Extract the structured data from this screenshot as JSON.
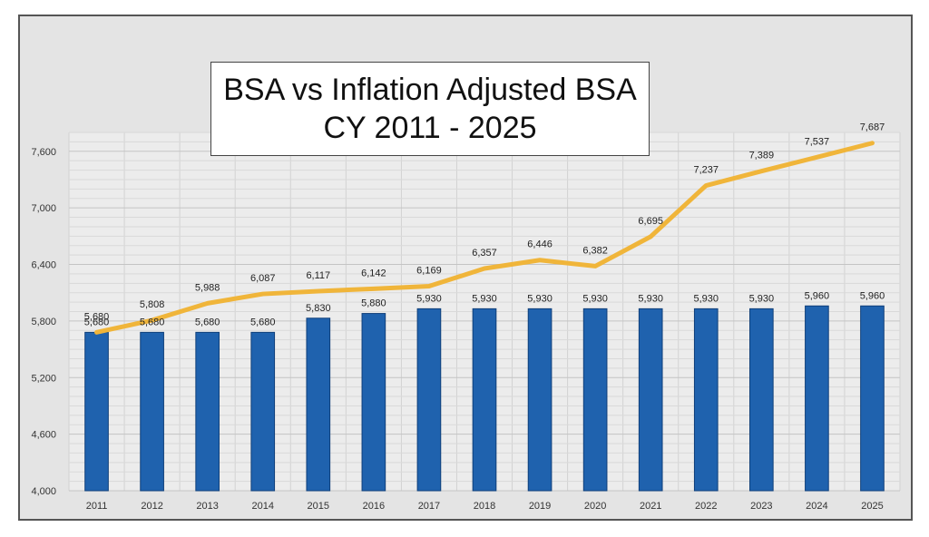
{
  "chart_data": {
    "type": "bar+line",
    "title": "BSA vs Inflation Adjusted BSA",
    "subtitle": "CY 2011 - 2025",
    "categories": [
      "2011",
      "2012",
      "2013",
      "2014",
      "2015",
      "2016",
      "2017",
      "2018",
      "2019",
      "2020",
      "2021",
      "2022",
      "2023",
      "2024",
      "2025"
    ],
    "series": [
      {
        "type": "bar",
        "values": [
          5680,
          5680,
          5680,
          5680,
          5830,
          5880,
          5930,
          5930,
          5930,
          5930,
          5930,
          5930,
          5930,
          5960,
          5960
        ],
        "color": "#1f62ae"
      },
      {
        "type": "line",
        "values": [
          5680,
          5808,
          5988,
          6087,
          6117,
          6142,
          6169,
          6357,
          6446,
          6382,
          6695,
          7237,
          7389,
          7537,
          7687
        ],
        "color": "#f0b53a"
      }
    ],
    "bar_labels": [
      "5,680",
      "5,680",
      "5,680",
      "5,680",
      "5,830",
      "5,880",
      "5,930",
      "5,930",
      "5,930",
      "5,930",
      "5,930",
      "5,930",
      "5,930",
      "5,960",
      "5,960"
    ],
    "line_labels": [
      "5,680",
      "5,808",
      "5,988",
      "6,087",
      "6,117",
      "6,142",
      "6,169",
      "6,357",
      "6,446",
      "6,382",
      "6,695",
      "7,237",
      "7,389",
      "7,537",
      "7,687"
    ],
    "ylim": [
      4000,
      7800
    ],
    "yticks": [
      4000,
      4600,
      5200,
      5800,
      6400,
      7000,
      7600
    ],
    "ytick_labels": [
      "4,000",
      "4,600",
      "5,200",
      "5,800",
      "6,400",
      "7,000",
      "7,600"
    ],
    "grid": true,
    "legend": "none",
    "xlabel": "",
    "ylabel": ""
  }
}
